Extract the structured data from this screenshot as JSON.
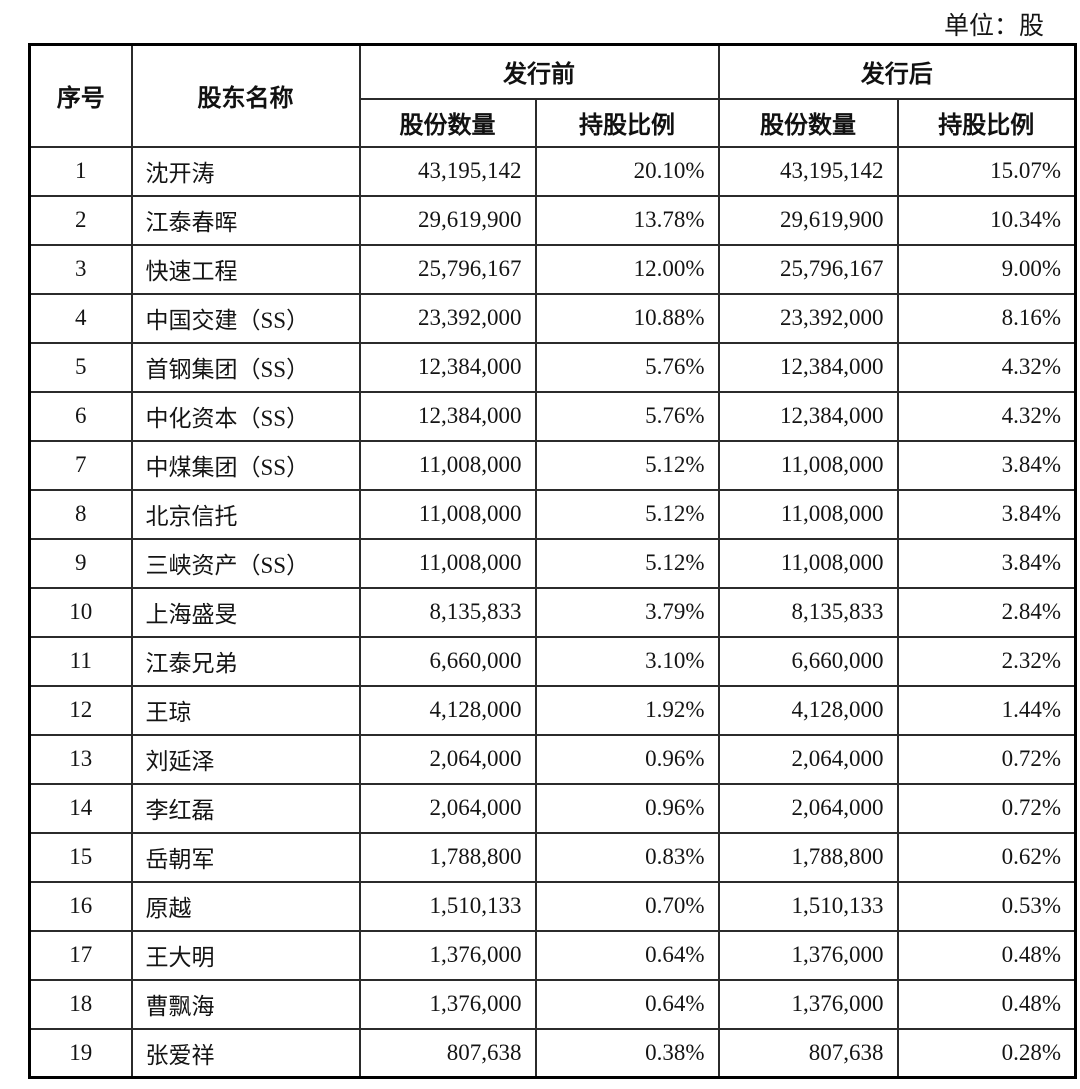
{
  "unit_label": "单位：股",
  "table": {
    "headers": {
      "index": "序号",
      "name": "股东名称",
      "pre": "发行前",
      "post": "发行后",
      "shares": "股份数量",
      "ratio": "持股比例"
    },
    "rows": [
      {
        "no": "1",
        "name": "沈开涛",
        "pre_shares": "43,195,142",
        "pre_ratio": "20.10%",
        "post_shares": "43,195,142",
        "post_ratio": "15.07%"
      },
      {
        "no": "2",
        "name": "江泰春晖",
        "pre_shares": "29,619,900",
        "pre_ratio": "13.78%",
        "post_shares": "29,619,900",
        "post_ratio": "10.34%"
      },
      {
        "no": "3",
        "name": "快速工程",
        "pre_shares": "25,796,167",
        "pre_ratio": "12.00%",
        "post_shares": "25,796,167",
        "post_ratio": "9.00%"
      },
      {
        "no": "4",
        "name": "中国交建（SS）",
        "pre_shares": "23,392,000",
        "pre_ratio": "10.88%",
        "post_shares": "23,392,000",
        "post_ratio": "8.16%"
      },
      {
        "no": "5",
        "name": "首钢集团（SS）",
        "pre_shares": "12,384,000",
        "pre_ratio": "5.76%",
        "post_shares": "12,384,000",
        "post_ratio": "4.32%"
      },
      {
        "no": "6",
        "name": "中化资本（SS）",
        "pre_shares": "12,384,000",
        "pre_ratio": "5.76%",
        "post_shares": "12,384,000",
        "post_ratio": "4.32%"
      },
      {
        "no": "7",
        "name": "中煤集团（SS）",
        "pre_shares": "11,008,000",
        "pre_ratio": "5.12%",
        "post_shares": "11,008,000",
        "post_ratio": "3.84%"
      },
      {
        "no": "8",
        "name": "北京信托",
        "pre_shares": "11,008,000",
        "pre_ratio": "5.12%",
        "post_shares": "11,008,000",
        "post_ratio": "3.84%"
      },
      {
        "no": "9",
        "name": "三峡资产（SS）",
        "pre_shares": "11,008,000",
        "pre_ratio": "5.12%",
        "post_shares": "11,008,000",
        "post_ratio": "3.84%"
      },
      {
        "no": "10",
        "name": "上海盛旻",
        "pre_shares": "8,135,833",
        "pre_ratio": "3.79%",
        "post_shares": "8,135,833",
        "post_ratio": "2.84%"
      },
      {
        "no": "11",
        "name": "江泰兄弟",
        "pre_shares": "6,660,000",
        "pre_ratio": "3.10%",
        "post_shares": "6,660,000",
        "post_ratio": "2.32%"
      },
      {
        "no": "12",
        "name": "王琼",
        "pre_shares": "4,128,000",
        "pre_ratio": "1.92%",
        "post_shares": "4,128,000",
        "post_ratio": "1.44%"
      },
      {
        "no": "13",
        "name": "刘延泽",
        "pre_shares": "2,064,000",
        "pre_ratio": "0.96%",
        "post_shares": "2,064,000",
        "post_ratio": "0.72%"
      },
      {
        "no": "14",
        "name": "李红磊",
        "pre_shares": "2,064,000",
        "pre_ratio": "0.96%",
        "post_shares": "2,064,000",
        "post_ratio": "0.72%"
      },
      {
        "no": "15",
        "name": "岳朝军",
        "pre_shares": "1,788,800",
        "pre_ratio": "0.83%",
        "post_shares": "1,788,800",
        "post_ratio": "0.62%"
      },
      {
        "no": "16",
        "name": "原越",
        "pre_shares": "1,510,133",
        "pre_ratio": "0.70%",
        "post_shares": "1,510,133",
        "post_ratio": "0.53%"
      },
      {
        "no": "17",
        "name": "王大明",
        "pre_shares": "1,376,000",
        "pre_ratio": "0.64%",
        "post_shares": "1,376,000",
        "post_ratio": "0.48%"
      },
      {
        "no": "18",
        "name": "曹飘海",
        "pre_shares": "1,376,000",
        "pre_ratio": "0.64%",
        "post_shares": "1,376,000",
        "post_ratio": "0.48%"
      },
      {
        "no": "19",
        "name": "张爱祥",
        "pre_shares": "807,638",
        "pre_ratio": "0.38%",
        "post_shares": "807,638",
        "post_ratio": "0.28%"
      }
    ]
  }
}
